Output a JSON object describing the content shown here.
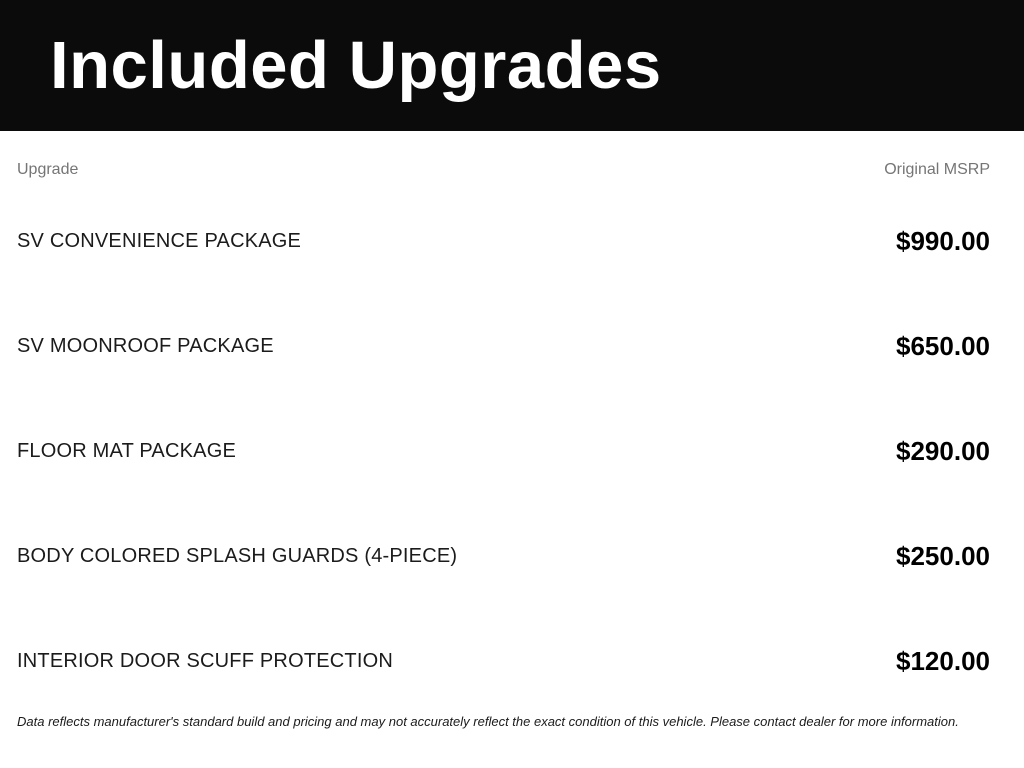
{
  "header": {
    "title": "Included Upgrades"
  },
  "table": {
    "columns": {
      "upgrade": "Upgrade",
      "msrp": "Original MSRP"
    },
    "rows": [
      {
        "name": "SV CONVENIENCE PACKAGE",
        "price": "$990.00"
      },
      {
        "name": "SV MOONROOF PACKAGE",
        "price": "$650.00"
      },
      {
        "name": "FLOOR MAT PACKAGE",
        "price": "$290.00"
      },
      {
        "name": "BODY COLORED SPLASH GUARDS (4-PIECE)",
        "price": "$250.00"
      },
      {
        "name": "INTERIOR DOOR SCUFF PROTECTION",
        "price": "$120.00"
      }
    ]
  },
  "disclaimer": "Data reflects manufacturer's standard build and pricing and may not accurately reflect the exact condition of this vehicle. Please contact dealer for more information.",
  "colors": {
    "header_background": "#0b0b0b",
    "header_text": "#ffffff",
    "column_header_text": "#757575",
    "row_text": "#1b1b1b",
    "price_text": "#000000",
    "page_background": "#ffffff"
  }
}
